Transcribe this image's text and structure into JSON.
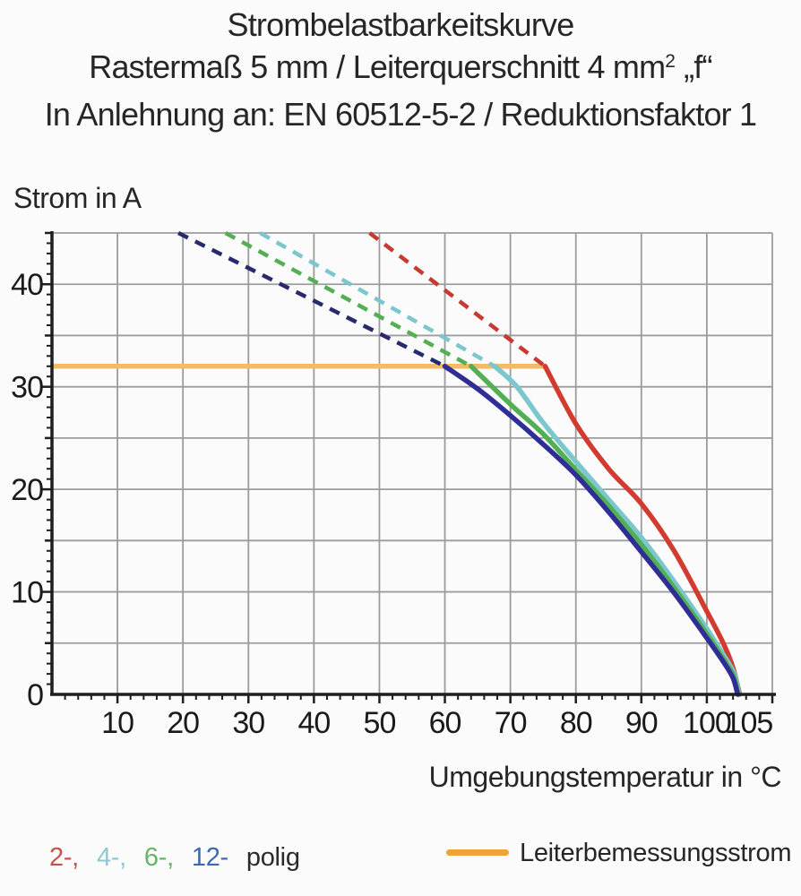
{
  "title": {
    "line1": "Strombelastbarkeitskurve",
    "line2_pre": "Rastermaß 5 mm / Leiterquerschnitt 4 mm",
    "line2_sup": "2",
    "line2_post": " „f“",
    "line3": "In Anlehnung an: EN 60512-5-2 / Reduktionsfaktor 1"
  },
  "legend": {
    "pole_items": [
      {
        "label": "2-,",
        "color": "#c8524b"
      },
      {
        "label": "4-,",
        "color": "#8cc9d3"
      },
      {
        "label": "6-,",
        "color": "#68b467"
      },
      {
        "label": "12-",
        "color": "#3e68b2"
      }
    ],
    "pole_suffix": "polig",
    "rated_label": "Leiterbemessungsstrom",
    "rated_swatch_color": "#efa236"
  },
  "chart_data": {
    "type": "line",
    "title": "Strombelastbarkeitskurve",
    "xlabel": "Umgebungstemperatur in °C",
    "ylabel": "Strom in A",
    "xlim": [
      0,
      110
    ],
    "ylim": [
      0,
      45
    ],
    "x_gridline_step": 10,
    "y_gridline_step": 5,
    "x_minor_tick_step": 2,
    "y_minor_tick_step": 1,
    "grid": true,
    "grid_color": "#9c9c9c",
    "axis_color": "#1e1e1e",
    "tick_label_color": "#1a1a1a",
    "x_tick_labels": [
      {
        "v": 10,
        "label": "10"
      },
      {
        "v": 20,
        "label": "20"
      },
      {
        "v": 30,
        "label": "30"
      },
      {
        "v": 40,
        "label": "40"
      },
      {
        "v": 50,
        "label": "50"
      },
      {
        "v": 60,
        "label": "60"
      },
      {
        "v": 70,
        "label": "70"
      },
      {
        "v": 80,
        "label": "80"
      },
      {
        "v": 90,
        "label": "90"
      },
      {
        "v": 100,
        "label": "100"
      },
      {
        "v": 105,
        "label": "105",
        "dx": 10
      }
    ],
    "y_tick_labels": [
      {
        "v": 0,
        "label": "0"
      },
      {
        "v": 10,
        "label": "10"
      },
      {
        "v": 20,
        "label": "20"
      },
      {
        "v": 30,
        "label": "30"
      },
      {
        "v": 40,
        "label": "40"
      }
    ],
    "rated_current_line": {
      "name": "Leiterbemessungsstrom",
      "value_A": 32,
      "x_from": 0,
      "x_to": 75.3,
      "color": "#f4bb64",
      "width": 5.5
    },
    "series": [
      {
        "name": "2-polig",
        "color": "#d23b30",
        "dash_color": "#c73a31",
        "dashed": [
          [
            48.5,
            45
          ],
          [
            75.3,
            32
          ]
        ],
        "solid": [
          [
            75.3,
            32
          ],
          [
            80,
            26.4
          ],
          [
            85,
            22.0
          ],
          [
            90,
            18.6
          ],
          [
            95,
            14.0
          ],
          [
            100,
            8.1
          ],
          [
            102.5,
            5.0
          ],
          [
            104,
            2.6
          ],
          [
            105,
            0
          ]
        ]
      },
      {
        "name": "4-polig",
        "color": "#7cc6ce",
        "dash_color": "#7cc6ce",
        "dashed": [
          [
            31.8,
            45
          ],
          [
            67.6,
            32
          ]
        ],
        "solid": [
          [
            67.6,
            32
          ],
          [
            71,
            30.0
          ],
          [
            75,
            26.5
          ],
          [
            80,
            22.7
          ],
          [
            85,
            19.0
          ],
          [
            90,
            15.3
          ],
          [
            95,
            11.0
          ],
          [
            100,
            6.4
          ],
          [
            102.5,
            3.9
          ],
          [
            104.2,
            2.0
          ],
          [
            104.9,
            0
          ]
        ]
      },
      {
        "name": "6-polig",
        "color": "#53af53",
        "dash_color": "#53af53",
        "dashed": [
          [
            26.5,
            45
          ],
          [
            64,
            32
          ]
        ],
        "solid": [
          [
            64,
            32
          ],
          [
            70,
            28.3
          ],
          [
            75,
            25.4
          ],
          [
            80,
            21.9
          ],
          [
            85,
            18.4
          ],
          [
            90,
            14.6
          ],
          [
            95,
            10.4
          ],
          [
            100,
            5.9
          ],
          [
            102.5,
            3.5
          ],
          [
            104.1,
            1.8
          ],
          [
            104.8,
            0
          ]
        ]
      },
      {
        "name": "12-polig",
        "color": "#2e2e96",
        "dash_color": "#29296f",
        "dashed": [
          [
            19.3,
            45
          ],
          [
            60,
            32
          ]
        ],
        "solid": [
          [
            60,
            32
          ],
          [
            65,
            29.8
          ],
          [
            70,
            27.2
          ],
          [
            75,
            24.4
          ],
          [
            80,
            21.4
          ],
          [
            85,
            17.8
          ],
          [
            90,
            13.9
          ],
          [
            95,
            9.9
          ],
          [
            100,
            5.5
          ],
          [
            102.5,
            3.2
          ],
          [
            104,
            1.6
          ],
          [
            104.7,
            0
          ]
        ]
      }
    ]
  }
}
